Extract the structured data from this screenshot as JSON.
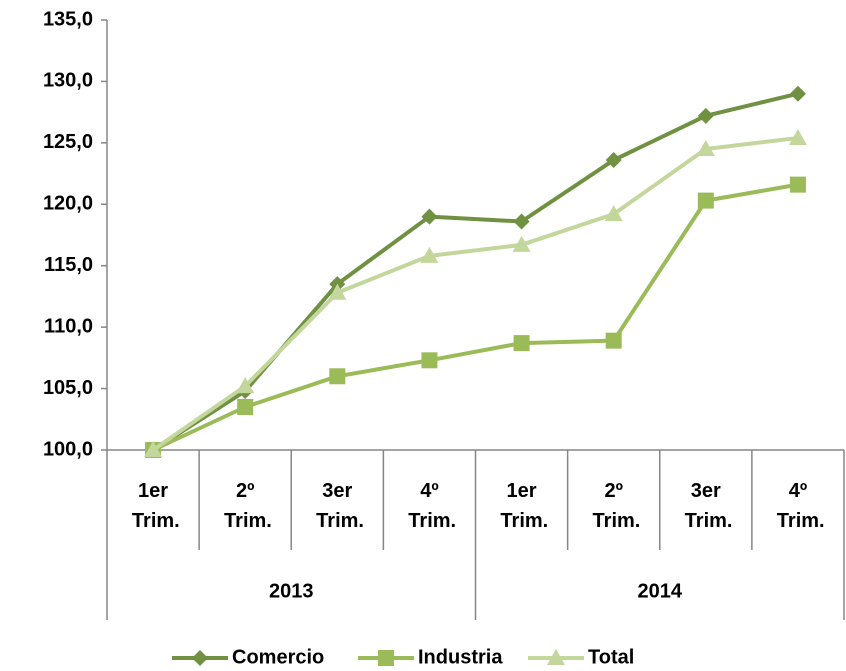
{
  "chart_data": {
    "type": "line",
    "categories": [
      "1er Trim.",
      "2º Trim.",
      "3er Trim.",
      "4º Trim.",
      "1er Trim.",
      "2º Trim.",
      "3er Trim.",
      "4º Trim."
    ],
    "groups": [
      "2013",
      "2014"
    ],
    "series": [
      {
        "name": "Comercio",
        "color": "#6f9141",
        "marker": "diamond",
        "values": [
          100.0,
          104.8,
          113.5,
          119.0,
          118.6,
          123.6,
          127.2,
          129.0
        ]
      },
      {
        "name": "Industria",
        "color": "#9bbb59",
        "marker": "square",
        "values": [
          100.0,
          103.5,
          106.0,
          107.3,
          108.7,
          108.9,
          120.3,
          121.6
        ]
      },
      {
        "name": "Total",
        "color": "#c3d69b",
        "marker": "triangle",
        "values": [
          100.0,
          105.2,
          112.8,
          115.8,
          116.7,
          119.2,
          124.5,
          125.4
        ]
      }
    ],
    "ylim": [
      100,
      135
    ],
    "yticks": [
      {
        "value": 100,
        "label": "100,0"
      },
      {
        "value": 105,
        "label": "105,0"
      },
      {
        "value": 110,
        "label": "110,0"
      },
      {
        "value": 115,
        "label": "115,0"
      },
      {
        "value": 120,
        "label": "120,0"
      },
      {
        "value": 125,
        "label": "125,0"
      },
      {
        "value": 130,
        "label": "130,0"
      },
      {
        "value": 135,
        "label": "135,0"
      }
    ],
    "legend": "bottom"
  }
}
